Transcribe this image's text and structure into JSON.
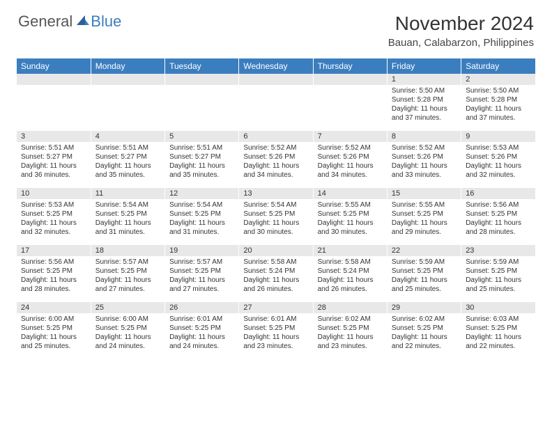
{
  "logo": {
    "general": "General",
    "blue": "Blue"
  },
  "title": "November 2024",
  "location": "Bauan, Calabarzon, Philippines",
  "colors": {
    "header_bg": "#3b7ebf",
    "header_text": "#ffffff",
    "daynum_bg": "#e8e8e8",
    "body_text": "#333333"
  },
  "day_headers": [
    "Sunday",
    "Monday",
    "Tuesday",
    "Wednesday",
    "Thursday",
    "Friday",
    "Saturday"
  ],
  "weeks": [
    [
      {
        "day": "",
        "sunrise": "",
        "sunset": "",
        "daylight": ""
      },
      {
        "day": "",
        "sunrise": "",
        "sunset": "",
        "daylight": ""
      },
      {
        "day": "",
        "sunrise": "",
        "sunset": "",
        "daylight": ""
      },
      {
        "day": "",
        "sunrise": "",
        "sunset": "",
        "daylight": ""
      },
      {
        "day": "",
        "sunrise": "",
        "sunset": "",
        "daylight": ""
      },
      {
        "day": "1",
        "sunrise": "Sunrise: 5:50 AM",
        "sunset": "Sunset: 5:28 PM",
        "daylight": "Daylight: 11 hours and 37 minutes."
      },
      {
        "day": "2",
        "sunrise": "Sunrise: 5:50 AM",
        "sunset": "Sunset: 5:28 PM",
        "daylight": "Daylight: 11 hours and 37 minutes."
      }
    ],
    [
      {
        "day": "3",
        "sunrise": "Sunrise: 5:51 AM",
        "sunset": "Sunset: 5:27 PM",
        "daylight": "Daylight: 11 hours and 36 minutes."
      },
      {
        "day": "4",
        "sunrise": "Sunrise: 5:51 AM",
        "sunset": "Sunset: 5:27 PM",
        "daylight": "Daylight: 11 hours and 35 minutes."
      },
      {
        "day": "5",
        "sunrise": "Sunrise: 5:51 AM",
        "sunset": "Sunset: 5:27 PM",
        "daylight": "Daylight: 11 hours and 35 minutes."
      },
      {
        "day": "6",
        "sunrise": "Sunrise: 5:52 AM",
        "sunset": "Sunset: 5:26 PM",
        "daylight": "Daylight: 11 hours and 34 minutes."
      },
      {
        "day": "7",
        "sunrise": "Sunrise: 5:52 AM",
        "sunset": "Sunset: 5:26 PM",
        "daylight": "Daylight: 11 hours and 34 minutes."
      },
      {
        "day": "8",
        "sunrise": "Sunrise: 5:52 AM",
        "sunset": "Sunset: 5:26 PM",
        "daylight": "Daylight: 11 hours and 33 minutes."
      },
      {
        "day": "9",
        "sunrise": "Sunrise: 5:53 AM",
        "sunset": "Sunset: 5:26 PM",
        "daylight": "Daylight: 11 hours and 32 minutes."
      }
    ],
    [
      {
        "day": "10",
        "sunrise": "Sunrise: 5:53 AM",
        "sunset": "Sunset: 5:25 PM",
        "daylight": "Daylight: 11 hours and 32 minutes."
      },
      {
        "day": "11",
        "sunrise": "Sunrise: 5:54 AM",
        "sunset": "Sunset: 5:25 PM",
        "daylight": "Daylight: 11 hours and 31 minutes."
      },
      {
        "day": "12",
        "sunrise": "Sunrise: 5:54 AM",
        "sunset": "Sunset: 5:25 PM",
        "daylight": "Daylight: 11 hours and 31 minutes."
      },
      {
        "day": "13",
        "sunrise": "Sunrise: 5:54 AM",
        "sunset": "Sunset: 5:25 PM",
        "daylight": "Daylight: 11 hours and 30 minutes."
      },
      {
        "day": "14",
        "sunrise": "Sunrise: 5:55 AM",
        "sunset": "Sunset: 5:25 PM",
        "daylight": "Daylight: 11 hours and 30 minutes."
      },
      {
        "day": "15",
        "sunrise": "Sunrise: 5:55 AM",
        "sunset": "Sunset: 5:25 PM",
        "daylight": "Daylight: 11 hours and 29 minutes."
      },
      {
        "day": "16",
        "sunrise": "Sunrise: 5:56 AM",
        "sunset": "Sunset: 5:25 PM",
        "daylight": "Daylight: 11 hours and 28 minutes."
      }
    ],
    [
      {
        "day": "17",
        "sunrise": "Sunrise: 5:56 AM",
        "sunset": "Sunset: 5:25 PM",
        "daylight": "Daylight: 11 hours and 28 minutes."
      },
      {
        "day": "18",
        "sunrise": "Sunrise: 5:57 AM",
        "sunset": "Sunset: 5:25 PM",
        "daylight": "Daylight: 11 hours and 27 minutes."
      },
      {
        "day": "19",
        "sunrise": "Sunrise: 5:57 AM",
        "sunset": "Sunset: 5:25 PM",
        "daylight": "Daylight: 11 hours and 27 minutes."
      },
      {
        "day": "20",
        "sunrise": "Sunrise: 5:58 AM",
        "sunset": "Sunset: 5:24 PM",
        "daylight": "Daylight: 11 hours and 26 minutes."
      },
      {
        "day": "21",
        "sunrise": "Sunrise: 5:58 AM",
        "sunset": "Sunset: 5:24 PM",
        "daylight": "Daylight: 11 hours and 26 minutes."
      },
      {
        "day": "22",
        "sunrise": "Sunrise: 5:59 AM",
        "sunset": "Sunset: 5:25 PM",
        "daylight": "Daylight: 11 hours and 25 minutes."
      },
      {
        "day": "23",
        "sunrise": "Sunrise: 5:59 AM",
        "sunset": "Sunset: 5:25 PM",
        "daylight": "Daylight: 11 hours and 25 minutes."
      }
    ],
    [
      {
        "day": "24",
        "sunrise": "Sunrise: 6:00 AM",
        "sunset": "Sunset: 5:25 PM",
        "daylight": "Daylight: 11 hours and 25 minutes."
      },
      {
        "day": "25",
        "sunrise": "Sunrise: 6:00 AM",
        "sunset": "Sunset: 5:25 PM",
        "daylight": "Daylight: 11 hours and 24 minutes."
      },
      {
        "day": "26",
        "sunrise": "Sunrise: 6:01 AM",
        "sunset": "Sunset: 5:25 PM",
        "daylight": "Daylight: 11 hours and 24 minutes."
      },
      {
        "day": "27",
        "sunrise": "Sunrise: 6:01 AM",
        "sunset": "Sunset: 5:25 PM",
        "daylight": "Daylight: 11 hours and 23 minutes."
      },
      {
        "day": "28",
        "sunrise": "Sunrise: 6:02 AM",
        "sunset": "Sunset: 5:25 PM",
        "daylight": "Daylight: 11 hours and 23 minutes."
      },
      {
        "day": "29",
        "sunrise": "Sunrise: 6:02 AM",
        "sunset": "Sunset: 5:25 PM",
        "daylight": "Daylight: 11 hours and 22 minutes."
      },
      {
        "day": "30",
        "sunrise": "Sunrise: 6:03 AM",
        "sunset": "Sunset: 5:25 PM",
        "daylight": "Daylight: 11 hours and 22 minutes."
      }
    ]
  ]
}
